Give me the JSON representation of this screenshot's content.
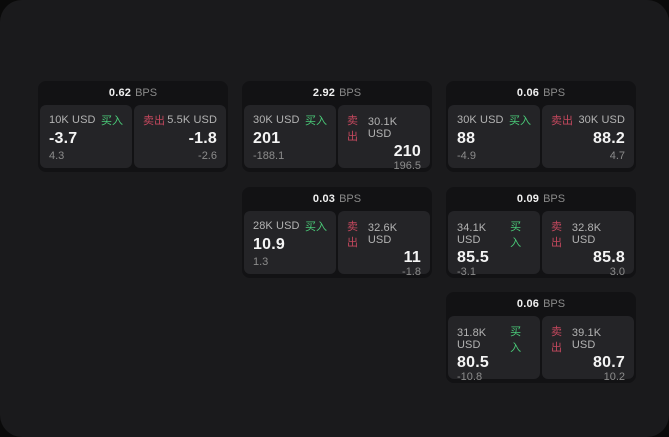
{
  "labels": {
    "bps_unit": "BPS",
    "buy": "买入",
    "sell": "卖出"
  },
  "colors": {
    "buy_green": "#4aca78",
    "sell_red": "#c4485e",
    "window_bg": "#1a1a1c",
    "card_bg": "#121214",
    "panel_bg": "#242427"
  },
  "cards": [
    {
      "row": 1,
      "col": 1,
      "bps": "0.62",
      "buy": {
        "amount": "10K USD",
        "value": "-3.7",
        "sub": "4.3"
      },
      "sell": {
        "amount": "5.5K USD",
        "value": "-1.8",
        "sub": "-2.6"
      }
    },
    {
      "row": 1,
      "col": 2,
      "bps": "2.92",
      "buy": {
        "amount": "30K USD",
        "value": "201",
        "sub": "-188.1"
      },
      "sell": {
        "amount": "30.1K USD",
        "value": "210",
        "sub": "196.5"
      }
    },
    {
      "row": 1,
      "col": 3,
      "bps": "0.06",
      "buy": {
        "amount": "30K USD",
        "value": "88",
        "sub": "-4.9"
      },
      "sell": {
        "amount": "30K USD",
        "value": "88.2",
        "sub": "4.7"
      }
    },
    {
      "row": 2,
      "col": 2,
      "bps": "0.03",
      "buy": {
        "amount": "28K USD",
        "value": "10.9",
        "sub": "1.3"
      },
      "sell": {
        "amount": "32.6K USD",
        "value": "11",
        "sub": "-1.8"
      }
    },
    {
      "row": 2,
      "col": 3,
      "bps": "0.09",
      "buy": {
        "amount": "34.1K USD",
        "value": "85.5",
        "sub": "-3.1"
      },
      "sell": {
        "amount": "32.8K USD",
        "value": "85.8",
        "sub": "3.0"
      }
    },
    {
      "row": 3,
      "col": 3,
      "bps": "0.06",
      "buy": {
        "amount": "31.8K USD",
        "value": "80.5",
        "sub": "-10.8"
      },
      "sell": {
        "amount": "39.1K USD",
        "value": "80.7",
        "sub": "10.2"
      }
    }
  ]
}
